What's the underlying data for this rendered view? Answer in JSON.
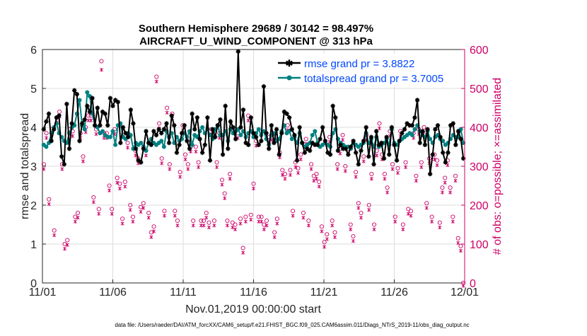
{
  "chart_data": {
    "type": "line",
    "title_line1": "Southern Hemisphere 29689 / 30142 = 98.497%",
    "title_line2": "AIRCRAFT_U_WIND_COMPONENT @ 313 hPa",
    "xlabel": "Nov.01,2019 00:00:00 start",
    "ylabel_left": "rmse and totalspread",
    "ylabel_right": "# of obs: o=possible; ×=assimilated",
    "footer": "data file: /Users/raeder/DAI/ATM_forcXX/CAM6_setup/f.e21.FHIST_BGC.f09_025.CAM6assim.011/Diags_NTrS_2019-11/obs_diag_output.nc",
    "x_range": [
      0,
      30
    ],
    "xticks": [
      0,
      5,
      10,
      15,
      20,
      25,
      30
    ],
    "xtick_labels": [
      "11/01",
      "11/06",
      "11/11",
      "11/16",
      "11/21",
      "11/26",
      "12/01"
    ],
    "ylim_left": [
      0,
      6
    ],
    "yticks_left": [
      "0",
      "1",
      "2",
      "3",
      "4",
      "5",
      "6"
    ],
    "ylim_right": [
      0,
      600
    ],
    "yticks_right": [
      "0",
      "100",
      "200",
      "300",
      "400",
      "500",
      "600"
    ],
    "grid": true,
    "legend_position": "top-right",
    "colors": {
      "rmse": "#000000",
      "spread": "#008080",
      "obs": "#cc0066",
      "legend_text": "#0047ff",
      "axis": "#262626",
      "grid": "#dddddd"
    },
    "series": [
      {
        "name": "rmse grand pr = 3.8822",
        "axis": "left",
        "values": [
          3.95,
          4.15,
          4.35,
          3.65,
          3.95,
          4.25,
          4.3,
          3.25,
          3.05,
          4.6,
          3.45,
          4.1,
          4.95,
          4.85,
          3.65,
          4.1,
          4.2,
          4.55,
          4.4,
          4.75,
          4.05,
          4.5,
          4.05,
          4.4,
          4.35,
          4.05,
          4.75,
          4.55,
          4.7,
          4.65,
          3.6,
          4.0,
          3.85,
          3.75,
          4.45,
          4.1,
          3.45,
          3.15,
          3.1,
          3.45,
          3.9,
          3.6,
          3.55,
          3.9,
          3.8,
          3.95,
          3.85,
          3.95,
          4.1,
          3.6,
          4.3,
          4.05,
          3.35,
          3.55,
          3.85,
          4.05,
          3.65,
          3.45,
          4.35,
          3.95,
          4.25,
          3.7,
          3.35,
          3.55,
          4.25,
          3.15,
          3.95,
          3.75,
          4.05,
          4.2,
          3.3,
          4.55,
          3.45,
          4.15,
          4.0,
          3.7,
          5.95,
          4.0,
          4.45,
          3.6,
          3.55,
          4.25,
          3.85,
          3.75,
          3.55,
          3.65,
          5.05,
          3.85,
          3.45,
          4.05,
          3.6,
          3.95,
          3.3,
          3.85,
          4.4,
          4.35,
          4.25,
          3.95,
          3.8,
          3.15,
          4.0,
          3.6,
          3.35,
          3.45,
          3.4,
          3.6,
          3.55,
          3.55,
          3.7,
          4.0,
          3.65,
          3.35,
          3.3,
          4.55,
          4.25,
          3.4,
          3.55,
          3.45,
          3.45,
          3.3,
          3.5,
          3.65,
          3.35,
          3.05,
          3.4,
          3.65,
          4.0,
          3.25,
          3.75,
          3.05,
          3.9,
          3.55,
          3.6,
          3.2,
          3.75,
          3.3,
          4.0,
          3.55,
          3.15,
          3.65,
          3.85,
          3.95,
          4.1,
          4.05,
          4.05,
          4.25,
          4.7,
          3.6,
          3.9,
          3.55,
          3.95,
          2.8,
          3.3,
          3.95,
          4.05,
          3.75,
          3.35,
          3.1,
          3.35,
          4.05,
          4.1,
          3.55,
          3.9,
          3.7,
          3.2
        ]
      },
      {
        "name": "totalspread grand pr = 3.7005",
        "axis": "left",
        "values": [
          3.55,
          3.5,
          3.6,
          3.85,
          4.0,
          4.1,
          3.85,
          3.75,
          3.65,
          3.6,
          3.85,
          4.0,
          4.05,
          4.35,
          4.7,
          4.05,
          3.95,
          4.9,
          4.8,
          4.35,
          4.05,
          4.0,
          3.85,
          3.9,
          3.8,
          3.75,
          3.75,
          3.9,
          3.55,
          4.05,
          4.1,
          3.75,
          3.7,
          3.85,
          3.8,
          3.45,
          3.6,
          3.55,
          3.6,
          3.5,
          3.4,
          3.6,
          3.7,
          3.6,
          3.55,
          3.6,
          3.65,
          3.5,
          3.9,
          3.75,
          3.85,
          3.6,
          3.75,
          3.65,
          3.7,
          3.85,
          3.75,
          3.9,
          3.55,
          3.8,
          3.75,
          3.9,
          4.0,
          3.85,
          3.95,
          3.8,
          3.7,
          3.95,
          4.05,
          3.8,
          3.8,
          3.9,
          3.65,
          3.95,
          3.85,
          3.9,
          3.95,
          3.8,
          3.9,
          3.75,
          3.85,
          3.9,
          3.75,
          3.85,
          3.95,
          3.8,
          3.9,
          3.7,
          3.55,
          3.8,
          3.85,
          3.65,
          3.7,
          3.9,
          4.05,
          3.85,
          3.9,
          3.7,
          3.75,
          3.6,
          3.85,
          3.6,
          3.5,
          3.55,
          3.6,
          3.8,
          3.9,
          3.6,
          3.5,
          3.55,
          3.6,
          3.55,
          3.5,
          3.85,
          3.95,
          3.7,
          3.6,
          3.55,
          3.5,
          3.5,
          3.45,
          3.6,
          3.55,
          3.5,
          3.55,
          3.6,
          3.85,
          3.6,
          3.7,
          3.5,
          3.75,
          3.5,
          3.55,
          3.6,
          3.7,
          3.55,
          3.95,
          3.6,
          3.55,
          3.65,
          3.7,
          3.75,
          3.8,
          3.85,
          3.8,
          3.95,
          4.05,
          3.9,
          3.8,
          3.75,
          3.9,
          3.7,
          3.6,
          3.75,
          3.8,
          3.7,
          3.65,
          3.55,
          3.6,
          3.7,
          3.8,
          3.75,
          3.75,
          3.95,
          3.6
        ]
      }
    ],
    "obs_series": [
      {
        "name": "possible",
        "axis": "right",
        "values": [
          305,
          385,
          215,
          395,
          135,
          425,
          440,
          305,
          100,
          110,
          395,
          390,
          170,
          180,
          385,
          325,
          400,
          430,
          430,
          220,
          395,
          190,
          570,
          385,
          385,
          250,
          190,
          395,
          270,
          255,
          165,
          260,
          360,
          200,
          170,
          340,
          320,
          195,
          205,
          340,
          180,
          130,
          145,
          530,
          410,
          320,
          185,
          450,
          305,
          435,
          185,
          160,
          285,
          405,
          330,
          305,
          350,
          160,
          350,
          310,
          160,
          160,
          180,
          155,
          395,
          160,
          310,
          385,
          265,
          230,
          160,
          280,
          155,
          150,
          385,
          165,
          90,
          170,
          430,
          175,
          255,
          365,
          170,
          170,
          150,
          160,
          375,
          380,
          130,
          165,
          335,
          290,
          280,
          405,
          290,
          185,
          310,
          295,
          330,
          180,
          370,
          160,
          305,
          275,
          280,
          260,
          145,
          105,
          125,
          375,
          160,
          130,
          305,
          345,
          380,
          300,
          345,
          150,
          120,
          285,
          205,
          180,
          325,
          380,
          200,
          280,
          150,
          340,
          410,
          330,
          280,
          245,
          390,
          305,
          170,
          295,
          390,
          150,
          310,
          190,
          185,
          385,
          275,
          395,
          310,
          400,
          205,
          320,
          170,
          330,
          315,
          155,
          245,
          270,
          315,
          245,
          170,
          275,
          115,
          95,
          0
        ]
      },
      {
        "name": "assimilated",
        "axis": "right",
        "values": [
          300,
          380,
          210,
          390,
          130,
          420,
          435,
          300,
          95,
          105,
          390,
          385,
          165,
          175,
          380,
          320,
          395,
          425,
          425,
          215,
          390,
          185,
          555,
          380,
          380,
          245,
          185,
          390,
          265,
          250,
          160,
          255,
          355,
          195,
          165,
          335,
          315,
          190,
          200,
          335,
          175,
          125,
          140,
          525,
          405,
          315,
          180,
          445,
          300,
          430,
          180,
          155,
          280,
          400,
          325,
          300,
          345,
          155,
          345,
          305,
          155,
          155,
          175,
          150,
          390,
          155,
          305,
          380,
          260,
          225,
          155,
          275,
          150,
          145,
          380,
          160,
          85,
          165,
          425,
          170,
          250,
          360,
          165,
          165,
          145,
          155,
          370,
          375,
          125,
          160,
          330,
          285,
          275,
          400,
          285,
          180,
          305,
          290,
          325,
          175,
          365,
          155,
          300,
          270,
          275,
          255,
          140,
          100,
          120,
          370,
          155,
          125,
          300,
          340,
          375,
          295,
          340,
          145,
          115,
          280,
          200,
          175,
          320,
          375,
          195,
          275,
          145,
          335,
          405,
          325,
          275,
          240,
          385,
          300,
          165,
          290,
          385,
          145,
          305,
          185,
          180,
          380,
          270,
          390,
          305,
          395,
          200,
          315,
          165,
          325,
          310,
          150,
          240,
          265,
          310,
          240,
          165,
          270,
          110,
          90,
          0
        ]
      }
    ]
  }
}
